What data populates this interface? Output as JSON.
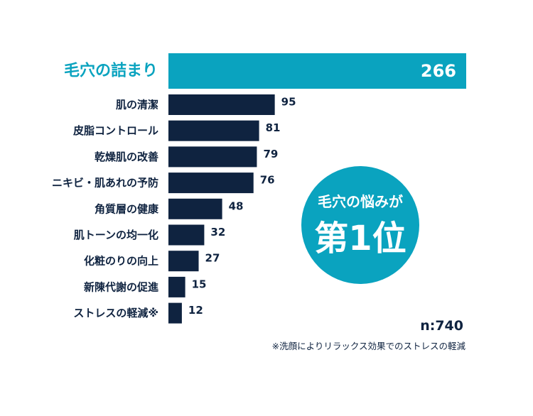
{
  "chart_data": {
    "type": "bar",
    "orientation": "horizontal",
    "categories": [
      "毛穴の詰まり",
      "肌の清潔",
      "皮脂コントロール",
      "乾燥肌の改善",
      "ニキビ・肌あれの予防",
      "角質層の健康",
      "肌トーンの均一化",
      "化粧のりの向上",
      "新陳代謝の促進",
      "ストレスの軽減※"
    ],
    "values": [
      266,
      95,
      81,
      79,
      76,
      48,
      32,
      27,
      15,
      12
    ],
    "highlight_index": 0,
    "xlim": [
      0,
      266
    ],
    "grid": false,
    "colors": {
      "highlight": "#0aa3bf",
      "bar": "#0f2340"
    }
  },
  "badge": {
    "line1": "毛穴の悩みが",
    "line2": "第1位",
    "color": "#0aa3bf"
  },
  "sample_size": "n:740",
  "footnote": "※洗顔によりリラックス効果でのストレスの軽減"
}
